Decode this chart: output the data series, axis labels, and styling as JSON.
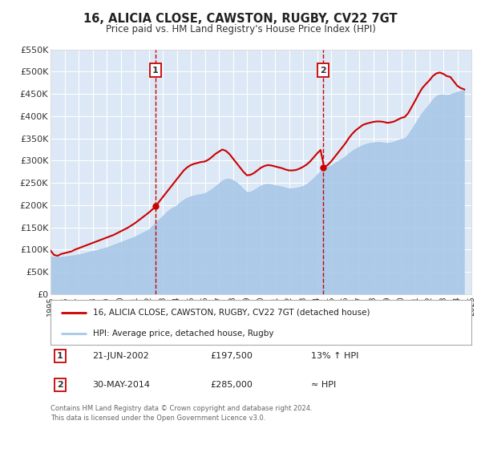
{
  "title": "16, ALICIA CLOSE, CAWSTON, RUGBY, CV22 7GT",
  "subtitle": "Price paid vs. HM Land Registry's House Price Index (HPI)",
  "legend_line1": "16, ALICIA CLOSE, CAWSTON, RUGBY, CV22 7GT (detached house)",
  "legend_line2": "HPI: Average price, detached house, Rugby",
  "annotation1_label": "1",
  "annotation1_date": "21-JUN-2002",
  "annotation1_price": "£197,500",
  "annotation1_hpi": "13% ↑ HPI",
  "annotation1_year": 2002.47,
  "annotation1_value": 197500,
  "annotation2_label": "2",
  "annotation2_date": "30-MAY-2014",
  "annotation2_price": "£285,000",
  "annotation2_hpi": "≈ HPI",
  "annotation2_year": 2014.41,
  "annotation2_value": 285000,
  "xmin": 1995,
  "xmax": 2025,
  "ymin": 0,
  "ymax": 550000,
  "yticks": [
    0,
    50000,
    100000,
    150000,
    200000,
    250000,
    300000,
    350000,
    400000,
    450000,
    500000,
    550000
  ],
  "ytick_labels": [
    "£0",
    "£50K",
    "£100K",
    "£150K",
    "£200K",
    "£250K",
    "£300K",
    "£350K",
    "£400K",
    "£450K",
    "£500K",
    "£550K"
  ],
  "xticks": [
    1995,
    1996,
    1997,
    1998,
    1999,
    2000,
    2001,
    2002,
    2003,
    2004,
    2005,
    2006,
    2007,
    2008,
    2009,
    2010,
    2011,
    2012,
    2013,
    2014,
    2015,
    2016,
    2017,
    2018,
    2019,
    2020,
    2021,
    2022,
    2023,
    2024,
    2025
  ],
  "plot_bg_color": "#dce8f5",
  "grid_color": "#ffffff",
  "hpi_color": "#a8c8e8",
  "price_color": "#cc0000",
  "dot_color": "#cc0000",
  "vline_color": "#cc0000",
  "footer_text": "Contains HM Land Registry data © Crown copyright and database right 2024.\nThis data is licensed under the Open Government Licence v3.0.",
  "hpi_data": [
    [
      1995.0,
      83000
    ],
    [
      1995.25,
      82000
    ],
    [
      1995.5,
      81500
    ],
    [
      1995.75,
      82000
    ],
    [
      1996.0,
      83000
    ],
    [
      1996.25,
      84000
    ],
    [
      1996.5,
      85000
    ],
    [
      1996.75,
      86000
    ],
    [
      1997.0,
      87500
    ],
    [
      1997.25,
      89000
    ],
    [
      1997.5,
      91000
    ],
    [
      1997.75,
      93000
    ],
    [
      1998.0,
      95000
    ],
    [
      1998.25,
      97000
    ],
    [
      1998.5,
      99000
    ],
    [
      1998.75,
      101000
    ],
    [
      1999.0,
      103000
    ],
    [
      1999.25,
      106000
    ],
    [
      1999.5,
      109000
    ],
    [
      1999.75,
      112000
    ],
    [
      2000.0,
      115000
    ],
    [
      2000.25,
      118000
    ],
    [
      2000.5,
      121000
    ],
    [
      2000.75,
      124000
    ],
    [
      2001.0,
      127000
    ],
    [
      2001.25,
      131000
    ],
    [
      2001.5,
      135000
    ],
    [
      2001.75,
      139000
    ],
    [
      2002.0,
      143000
    ],
    [
      2002.25,
      150000
    ],
    [
      2002.5,
      158000
    ],
    [
      2002.75,
      166000
    ],
    [
      2003.0,
      173000
    ],
    [
      2003.25,
      181000
    ],
    [
      2003.5,
      188000
    ],
    [
      2003.75,
      193000
    ],
    [
      2004.0,
      197000
    ],
    [
      2004.25,
      204000
    ],
    [
      2004.5,
      210000
    ],
    [
      2004.75,
      215000
    ],
    [
      2005.0,
      218000
    ],
    [
      2005.25,
      220000
    ],
    [
      2005.5,
      222000
    ],
    [
      2005.75,
      223000
    ],
    [
      2006.0,
      225000
    ],
    [
      2006.25,
      229000
    ],
    [
      2006.5,
      234000
    ],
    [
      2006.75,
      240000
    ],
    [
      2007.0,
      246000
    ],
    [
      2007.25,
      253000
    ],
    [
      2007.5,
      257000
    ],
    [
      2007.75,
      258000
    ],
    [
      2008.0,
      255000
    ],
    [
      2008.25,
      250000
    ],
    [
      2008.5,
      243000
    ],
    [
      2008.75,
      235000
    ],
    [
      2009.0,
      228000
    ],
    [
      2009.25,
      228000
    ],
    [
      2009.5,
      232000
    ],
    [
      2009.75,
      237000
    ],
    [
      2010.0,
      242000
    ],
    [
      2010.25,
      245000
    ],
    [
      2010.5,
      246000
    ],
    [
      2010.75,
      245000
    ],
    [
      2011.0,
      243000
    ],
    [
      2011.25,
      242000
    ],
    [
      2011.5,
      240000
    ],
    [
      2011.75,
      238000
    ],
    [
      2012.0,
      236000
    ],
    [
      2012.25,
      236000
    ],
    [
      2012.5,
      237000
    ],
    [
      2012.75,
      239000
    ],
    [
      2013.0,
      241000
    ],
    [
      2013.25,
      245000
    ],
    [
      2013.5,
      251000
    ],
    [
      2013.75,
      258000
    ],
    [
      2014.0,
      266000
    ],
    [
      2014.25,
      274000
    ],
    [
      2014.5,
      280000
    ],
    [
      2014.75,
      284000
    ],
    [
      2015.0,
      287000
    ],
    [
      2015.25,
      292000
    ],
    [
      2015.5,
      297000
    ],
    [
      2015.75,
      302000
    ],
    [
      2016.0,
      307000
    ],
    [
      2016.25,
      314000
    ],
    [
      2016.5,
      320000
    ],
    [
      2016.75,
      325000
    ],
    [
      2017.0,
      329000
    ],
    [
      2017.25,
      333000
    ],
    [
      2017.5,
      336000
    ],
    [
      2017.75,
      338000
    ],
    [
      2018.0,
      339000
    ],
    [
      2018.25,
      340000
    ],
    [
      2018.5,
      340000
    ],
    [
      2018.75,
      339000
    ],
    [
      2019.0,
      338000
    ],
    [
      2019.25,
      339000
    ],
    [
      2019.5,
      341000
    ],
    [
      2019.75,
      344000
    ],
    [
      2020.0,
      347000
    ],
    [
      2020.25,
      348000
    ],
    [
      2020.5,
      356000
    ],
    [
      2020.75,
      368000
    ],
    [
      2021.0,
      380000
    ],
    [
      2021.25,
      393000
    ],
    [
      2021.5,
      405000
    ],
    [
      2021.75,
      415000
    ],
    [
      2022.0,
      424000
    ],
    [
      2022.25,
      435000
    ],
    [
      2022.5,
      443000
    ],
    [
      2022.75,
      447000
    ],
    [
      2023.0,
      447000
    ],
    [
      2023.25,
      446000
    ],
    [
      2023.5,
      447000
    ],
    [
      2023.75,
      450000
    ],
    [
      2024.0,
      453000
    ],
    [
      2024.25,
      455000
    ],
    [
      2024.5,
      457000
    ]
  ],
  "price_data": [
    [
      1995.0,
      98000
    ],
    [
      1995.25,
      88000
    ],
    [
      1995.5,
      86000
    ],
    [
      1995.75,
      90000
    ],
    [
      1996.0,
      92000
    ],
    [
      1996.25,
      94000
    ],
    [
      1996.5,
      96000
    ],
    [
      1996.75,
      100000
    ],
    [
      1997.0,
      103000
    ],
    [
      1997.25,
      106000
    ],
    [
      1997.5,
      109000
    ],
    [
      1997.75,
      112000
    ],
    [
      1998.0,
      115000
    ],
    [
      1998.25,
      118000
    ],
    [
      1998.5,
      121000
    ],
    [
      1998.75,
      124000
    ],
    [
      1999.0,
      127000
    ],
    [
      1999.25,
      130000
    ],
    [
      1999.5,
      133000
    ],
    [
      1999.75,
      137000
    ],
    [
      2000.0,
      141000
    ],
    [
      2000.25,
      145000
    ],
    [
      2000.5,
      149000
    ],
    [
      2000.75,
      154000
    ],
    [
      2001.0,
      159000
    ],
    [
      2001.25,
      165000
    ],
    [
      2001.5,
      171000
    ],
    [
      2001.75,
      177000
    ],
    [
      2002.0,
      183000
    ],
    [
      2002.25,
      190000
    ],
    [
      2002.5,
      197500
    ],
    [
      2002.75,
      208000
    ],
    [
      2003.0,
      218000
    ],
    [
      2003.25,
      228000
    ],
    [
      2003.5,
      238000
    ],
    [
      2003.75,
      248000
    ],
    [
      2004.0,
      258000
    ],
    [
      2004.25,
      268000
    ],
    [
      2004.5,
      278000
    ],
    [
      2004.75,
      285000
    ],
    [
      2005.0,
      290000
    ],
    [
      2005.25,
      293000
    ],
    [
      2005.5,
      295000
    ],
    [
      2005.75,
      297000
    ],
    [
      2006.0,
      298000
    ],
    [
      2006.25,
      302000
    ],
    [
      2006.5,
      308000
    ],
    [
      2006.75,
      315000
    ],
    [
      2007.0,
      320000
    ],
    [
      2007.25,
      325000
    ],
    [
      2007.5,
      322000
    ],
    [
      2007.75,
      315000
    ],
    [
      2008.0,
      305000
    ],
    [
      2008.25,
      295000
    ],
    [
      2008.5,
      285000
    ],
    [
      2008.75,
      275000
    ],
    [
      2009.0,
      267000
    ],
    [
      2009.25,
      268000
    ],
    [
      2009.5,
      272000
    ],
    [
      2009.75,
      278000
    ],
    [
      2010.0,
      284000
    ],
    [
      2010.25,
      288000
    ],
    [
      2010.5,
      290000
    ],
    [
      2010.75,
      289000
    ],
    [
      2011.0,
      287000
    ],
    [
      2011.25,
      285000
    ],
    [
      2011.5,
      283000
    ],
    [
      2011.75,
      280000
    ],
    [
      2012.0,
      278000
    ],
    [
      2012.25,
      278000
    ],
    [
      2012.5,
      279000
    ],
    [
      2012.75,
      282000
    ],
    [
      2013.0,
      286000
    ],
    [
      2013.25,
      291000
    ],
    [
      2013.5,
      298000
    ],
    [
      2013.75,
      307000
    ],
    [
      2014.0,
      316000
    ],
    [
      2014.25,
      324000
    ],
    [
      2014.5,
      285000
    ],
    [
      2014.75,
      290000
    ],
    [
      2015.0,
      298000
    ],
    [
      2015.25,
      308000
    ],
    [
      2015.5,
      318000
    ],
    [
      2015.75,
      328000
    ],
    [
      2016.0,
      338000
    ],
    [
      2016.25,
      350000
    ],
    [
      2016.5,
      360000
    ],
    [
      2016.75,
      368000
    ],
    [
      2017.0,
      374000
    ],
    [
      2017.25,
      380000
    ],
    [
      2017.5,
      383000
    ],
    [
      2017.75,
      385000
    ],
    [
      2018.0,
      387000
    ],
    [
      2018.25,
      388000
    ],
    [
      2018.5,
      388000
    ],
    [
      2018.75,
      387000
    ],
    [
      2019.0,
      385000
    ],
    [
      2019.25,
      386000
    ],
    [
      2019.5,
      388000
    ],
    [
      2019.75,
      392000
    ],
    [
      2020.0,
      396000
    ],
    [
      2020.25,
      398000
    ],
    [
      2020.5,
      407000
    ],
    [
      2020.75,
      421000
    ],
    [
      2021.0,
      435000
    ],
    [
      2021.25,
      450000
    ],
    [
      2021.5,
      463000
    ],
    [
      2021.75,
      472000
    ],
    [
      2022.0,
      480000
    ],
    [
      2022.25,
      490000
    ],
    [
      2022.5,
      496000
    ],
    [
      2022.75,
      498000
    ],
    [
      2023.0,
      495000
    ],
    [
      2023.25,
      490000
    ],
    [
      2023.5,
      488000
    ],
    [
      2023.75,
      478000
    ],
    [
      2024.0,
      468000
    ],
    [
      2024.25,
      463000
    ],
    [
      2024.5,
      460000
    ]
  ]
}
